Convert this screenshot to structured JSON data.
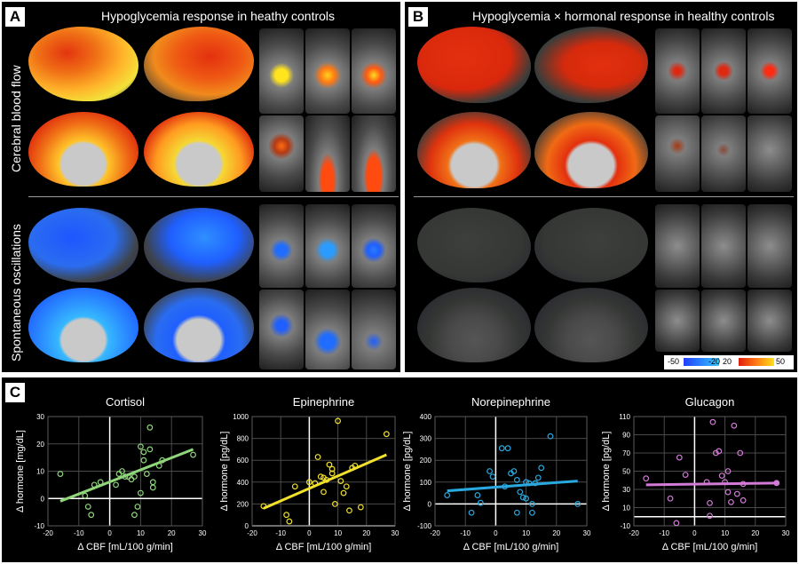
{
  "panel_a": {
    "label": "A",
    "title": "Hypoglycemia response in heathy controls"
  },
  "panel_b": {
    "label": "B",
    "title": "Hypoglycemia × hormonal response in healthy controls"
  },
  "panel_c": {
    "label": "C"
  },
  "row_labels": {
    "cbf": "Cerebral blood flow",
    "osc": "Spontaneous oscillations"
  },
  "colorbar": {
    "ticks": [
      "-50",
      "-20",
      "20",
      "50"
    ]
  },
  "colors": {
    "hot_low": "#e0200c",
    "hot_high": "#ffe01a",
    "cold_low": "#1f5fff",
    "cold_high": "#36c8ff",
    "cortex_gray": "#3a3d3a"
  },
  "chart_data": [
    {
      "type": "scatter",
      "title": "Cortisol",
      "xlabel": "Δ CBF [mL/100 g/min]",
      "ylabel": "Δ hormone [mg/dL]",
      "xlim": [
        -20,
        30
      ],
      "ylim": [
        -10,
        30
      ],
      "xticks": [
        "-20",
        "-10",
        "0",
        "10",
        "20",
        "30"
      ],
      "yticks": [
        "-10",
        "0",
        "10",
        "20",
        "30"
      ],
      "color": "#8fd67a",
      "points": [
        [
          -16,
          9
        ],
        [
          -8,
          1
        ],
        [
          -7,
          -3
        ],
        [
          -6,
          -6
        ],
        [
          -5,
          5
        ],
        [
          -3,
          6
        ],
        [
          2,
          5
        ],
        [
          3,
          9
        ],
        [
          4,
          10
        ],
        [
          5,
          8
        ],
        [
          6,
          8
        ],
        [
          7,
          7
        ],
        [
          8,
          8
        ],
        [
          8,
          -6
        ],
        [
          9,
          -3
        ],
        [
          10,
          2
        ],
        [
          10,
          19
        ],
        [
          11,
          14
        ],
        [
          11,
          17
        ],
        [
          12,
          9
        ],
        [
          13,
          18
        ],
        [
          13,
          26
        ],
        [
          14,
          4
        ],
        [
          14,
          6
        ],
        [
          16,
          12
        ],
        [
          17,
          14
        ],
        [
          27,
          16
        ]
      ],
      "fit": [
        [
          -16,
          -1
        ],
        [
          27,
          18
        ]
      ]
    },
    {
      "type": "scatter",
      "title": "Epinephrine",
      "xlabel": "Δ CBF [mL/100 g/min]",
      "ylabel": "Δ hormone [pg/dL]",
      "xlim": [
        -20,
        30
      ],
      "ylim": [
        0,
        1000
      ],
      "xticks": [
        "-20",
        "-10",
        "0",
        "10",
        "20",
        "30"
      ],
      "yticks": [
        "0",
        "200",
        "400",
        "600",
        "800",
        "1000"
      ],
      "color": "#f2e12a",
      "points": [
        [
          -16,
          180
        ],
        [
          -8,
          100
        ],
        [
          -7,
          40
        ],
        [
          -5,
          360
        ],
        [
          0,
          400
        ],
        [
          2,
          390
        ],
        [
          3,
          630
        ],
        [
          4,
          450
        ],
        [
          5,
          440
        ],
        [
          5,
          310
        ],
        [
          6,
          420
        ],
        [
          7,
          560
        ],
        [
          8,
          520
        ],
        [
          8,
          480
        ],
        [
          9,
          200
        ],
        [
          10,
          960
        ],
        [
          11,
          410
        ],
        [
          12,
          300
        ],
        [
          13,
          360
        ],
        [
          14,
          140
        ],
        [
          15,
          530
        ],
        [
          16,
          550
        ],
        [
          18,
          170
        ],
        [
          27,
          840
        ]
      ],
      "fit": [
        [
          -16,
          160
        ],
        [
          27,
          650
        ]
      ]
    },
    {
      "type": "scatter",
      "title": "Norepinephrine",
      "xlabel": "Δ CBF [mL/100 g/min]",
      "ylabel": "Δ hormone [pg/dL]",
      "xlim": [
        -20,
        30
      ],
      "ylim": [
        -100,
        400
      ],
      "xticks": [
        "-20",
        "-10",
        "0",
        "10",
        "20",
        "30"
      ],
      "yticks": [
        "-100",
        "0",
        "100",
        "200",
        "300",
        "400"
      ],
      "color": "#2aa9e0",
      "points": [
        [
          -16,
          40
        ],
        [
          -8,
          -40
        ],
        [
          -6,
          40
        ],
        [
          -5,
          5
        ],
        [
          -2,
          150
        ],
        [
          -1,
          125
        ],
        [
          2,
          255
        ],
        [
          3,
          80
        ],
        [
          4,
          255
        ],
        [
          5,
          140
        ],
        [
          6,
          150
        ],
        [
          7,
          110
        ],
        [
          7,
          -40
        ],
        [
          8,
          55
        ],
        [
          9,
          30
        ],
        [
          10,
          100
        ],
        [
          10,
          25
        ],
        [
          11,
          95
        ],
        [
          12,
          0
        ],
        [
          12,
          -40
        ],
        [
          13,
          95
        ],
        [
          14,
          120
        ],
        [
          15,
          165
        ],
        [
          18,
          310
        ],
        [
          27,
          0
        ]
      ],
      "fit": [
        [
          -16,
          60
        ],
        [
          27,
          105
        ]
      ]
    },
    {
      "type": "scatter",
      "title": "Glucagon",
      "xlabel": "Δ CBF [mL/100 g/min]",
      "ylabel": "Δ hormone [pg/dL]",
      "xlim": [
        -20,
        30
      ],
      "ylim": [
        -10,
        110
      ],
      "xticks": [
        "-20",
        "-10",
        "0",
        "10",
        "20",
        "30"
      ],
      "yticks": [
        "-10",
        "10",
        "30",
        "50",
        "70",
        "90",
        "110"
      ],
      "color": "#d27ad6",
      "points": [
        [
          -16,
          42
        ],
        [
          -8,
          20
        ],
        [
          -6,
          -7
        ],
        [
          -5,
          65
        ],
        [
          -3,
          46
        ],
        [
          4,
          38
        ],
        [
          5,
          1
        ],
        [
          5,
          15
        ],
        [
          6,
          104
        ],
        [
          7,
          70
        ],
        [
          8,
          72
        ],
        [
          9,
          45
        ],
        [
          10,
          38
        ],
        [
          11,
          50
        ],
        [
          11,
          27
        ],
        [
          12,
          16
        ],
        [
          13,
          100
        ],
        [
          14,
          25
        ],
        [
          15,
          70
        ],
        [
          16,
          18
        ],
        [
          16,
          36
        ],
        [
          27,
          37
        ]
      ],
      "fit": [
        [
          -16,
          35
        ],
        [
          27,
          37
        ]
      ]
    }
  ]
}
